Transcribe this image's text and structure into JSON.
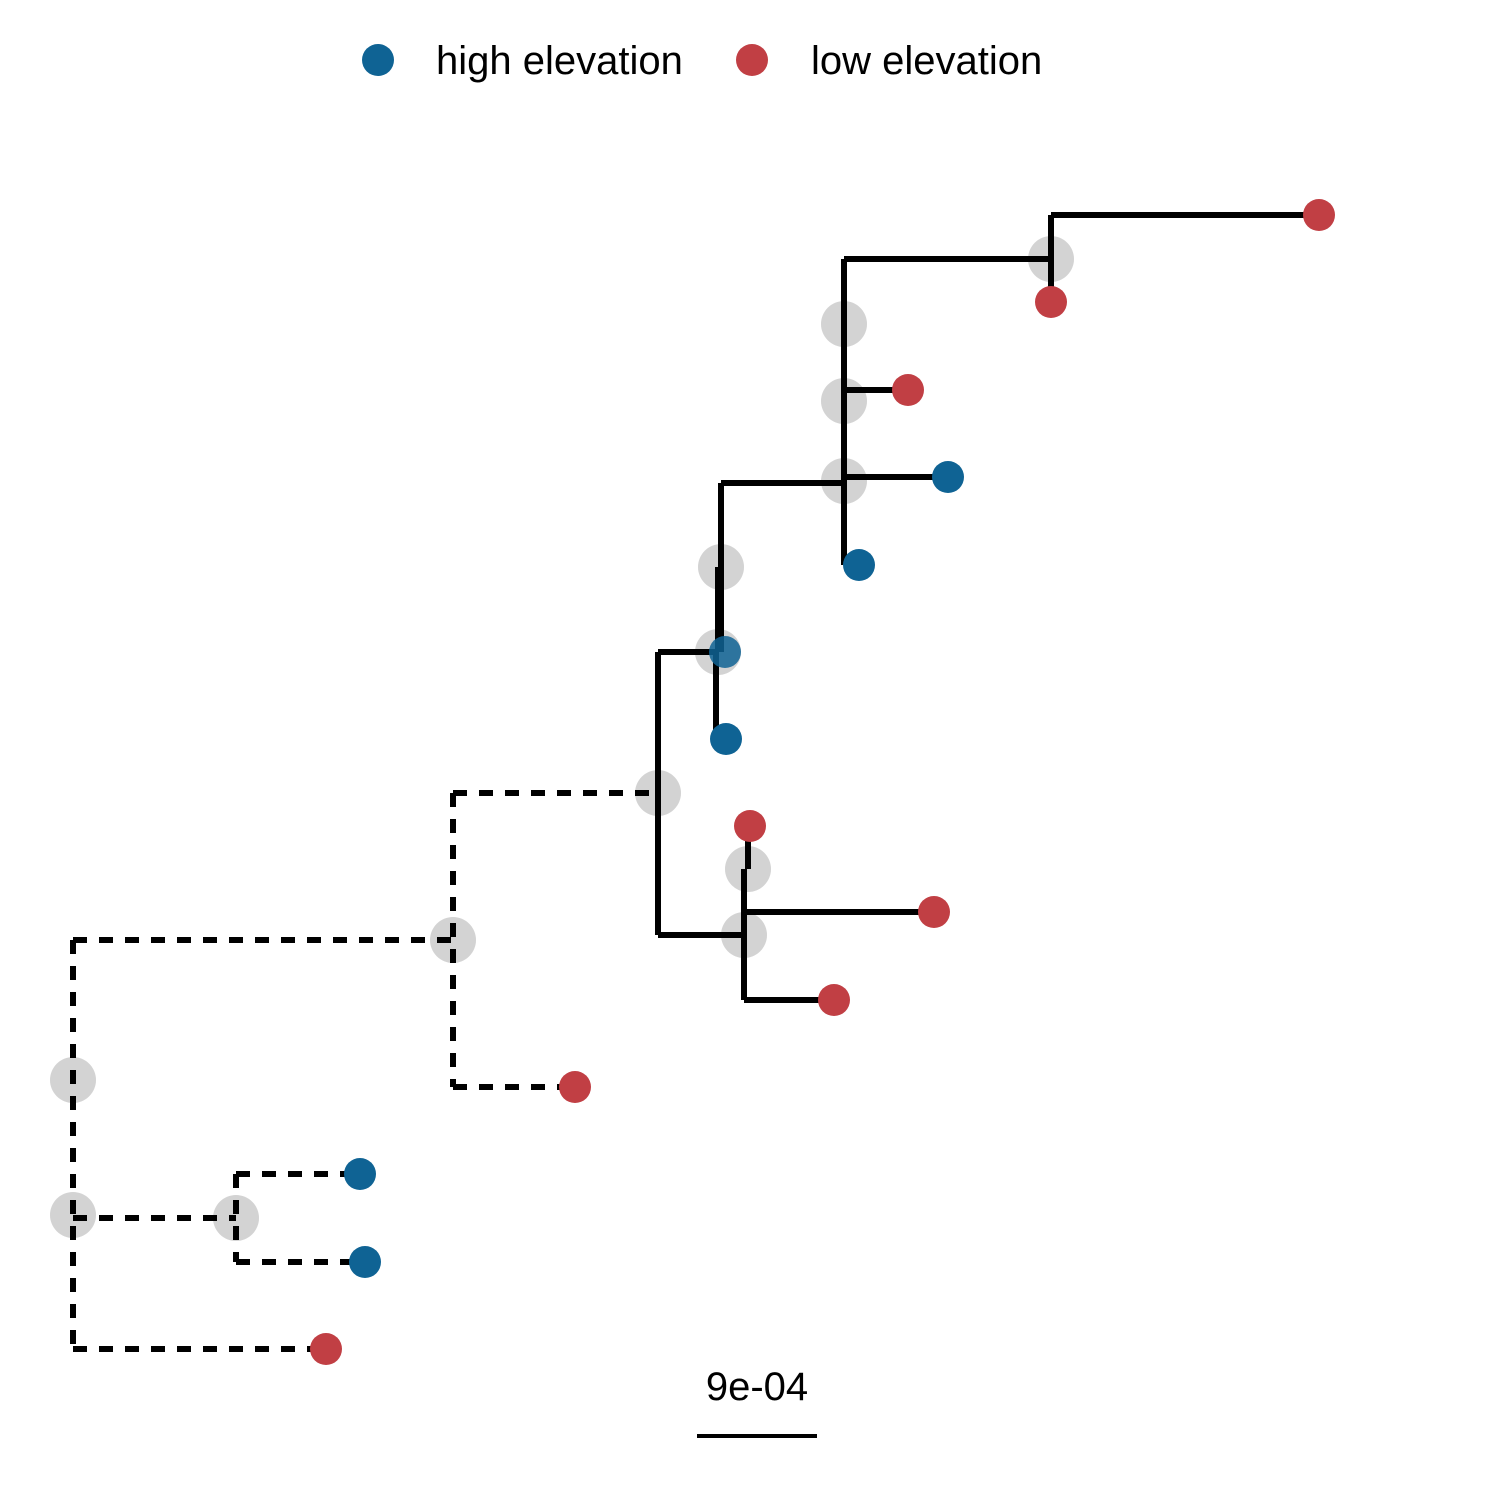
{
  "legend": {
    "items": [
      {
        "label": "high elevation",
        "color": "#0f6394"
      },
      {
        "label": "low elevation",
        "color": "#c13f44"
      }
    ]
  },
  "scale_bar": {
    "label": "9e-04"
  },
  "colors": {
    "high": "#0f6394",
    "low": "#c13f44",
    "internal_node": "#d3d3d3",
    "branch": "#000000"
  },
  "tree": {
    "tips": [
      {
        "id": "t1",
        "group": "low"
      },
      {
        "id": "t2",
        "group": "low"
      },
      {
        "id": "t3",
        "group": "low"
      },
      {
        "id": "t4",
        "group": "high"
      },
      {
        "id": "t5",
        "group": "high"
      },
      {
        "id": "t6",
        "group": "high"
      },
      {
        "id": "t7",
        "group": "high"
      },
      {
        "id": "t8",
        "group": "low"
      },
      {
        "id": "t9",
        "group": "low"
      },
      {
        "id": "t10",
        "group": "low"
      },
      {
        "id": "t11",
        "group": "low"
      },
      {
        "id": "t12",
        "group": "high"
      },
      {
        "id": "t13",
        "group": "high"
      },
      {
        "id": "t14",
        "group": "low"
      }
    ]
  }
}
